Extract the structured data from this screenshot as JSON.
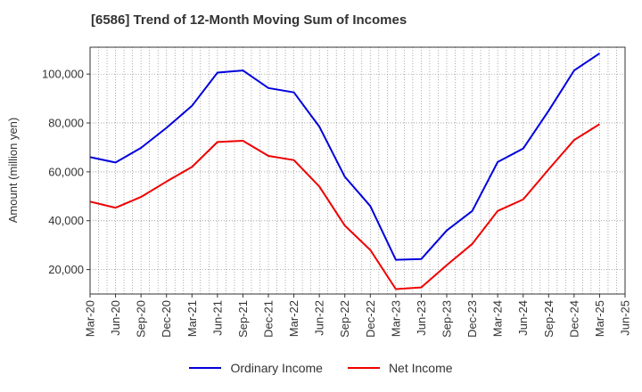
{
  "chart_data": {
    "type": "line",
    "title": "[6586]  Trend of 12-Month Moving Sum of Incomes",
    "xlabel": "",
    "ylabel": "Amount (million yen)",
    "categories": [
      "Mar-20",
      "Jun-20",
      "Sep-20",
      "Dec-20",
      "Mar-21",
      "Jun-21",
      "Sep-21",
      "Dec-21",
      "Mar-22",
      "Jun-22",
      "Sep-22",
      "Dec-22",
      "Mar-23",
      "Jun-23",
      "Sep-23",
      "Dec-23",
      "Mar-24",
      "Jun-24",
      "Sep-24",
      "Dec-24",
      "Mar-25",
      "Jun-25"
    ],
    "ylim": [
      10000,
      111000
    ],
    "yticks": [
      20000,
      40000,
      60000,
      80000,
      100000
    ],
    "ytick_labels": [
      "20,000",
      "40,000",
      "60,000",
      "80,000",
      "100,000"
    ],
    "grid": true,
    "legend_position": "bottom",
    "series": [
      {
        "name": "Ordinary Income",
        "color": "#0000dd",
        "values": [
          66000,
          63800,
          69800,
          78000,
          87000,
          100600,
          101500,
          94300,
          92500,
          78500,
          58000,
          46000,
          24000,
          24300,
          36000,
          44000,
          64000,
          69500,
          85000,
          101500,
          108500,
          null
        ]
      },
      {
        "name": "Net Income",
        "color": "#ee0000",
        "values": [
          47800,
          45300,
          49700,
          56000,
          62000,
          72200,
          72700,
          66500,
          64800,
          54000,
          38000,
          28000,
          12000,
          12700,
          21800,
          30500,
          44000,
          48700,
          61000,
          73000,
          79500,
          null
        ]
      }
    ]
  }
}
